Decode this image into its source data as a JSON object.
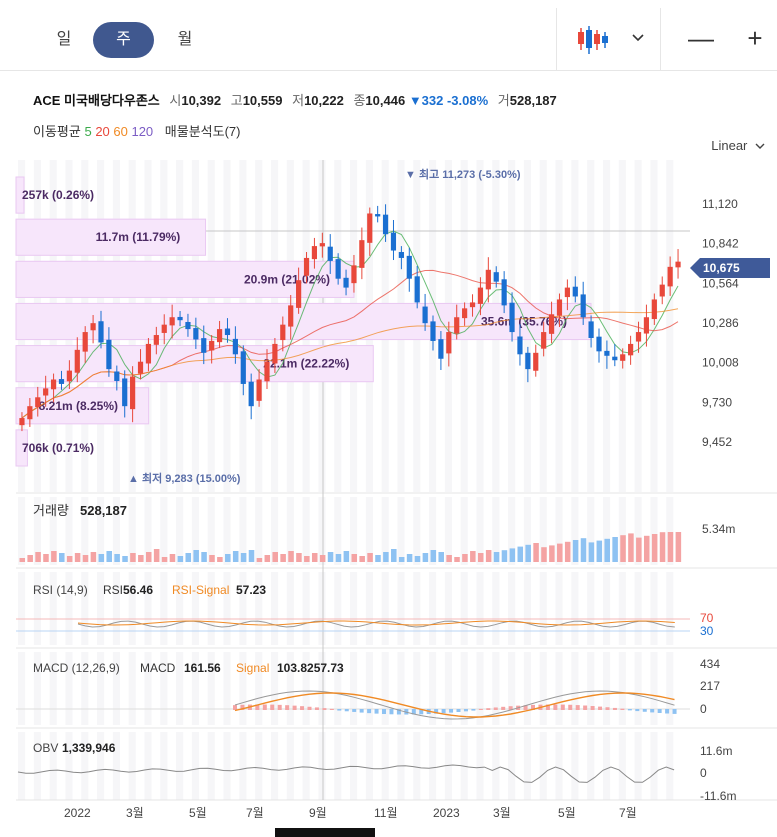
{
  "tabs": [
    {
      "label": "일",
      "active": false
    },
    {
      "label": "주",
      "active": true
    },
    {
      "label": "월",
      "active": false
    }
  ],
  "toolbar": {
    "dropdown_icon": "candlestick-icon",
    "minus": "—",
    "plus": "+"
  },
  "quote": {
    "name": "ACE 미국배당다우존스",
    "open_label": "시",
    "open": "10,392",
    "high_label": "고",
    "high": "10,559",
    "low_label": "저",
    "low": "10,222",
    "close_label": "종",
    "close": "10,446",
    "change": "▼332 -3.08%",
    "vol_label": "거",
    "volume": "528,187"
  },
  "indicators": {
    "ma_label": "이동평균",
    "ma_periods": [
      {
        "v": "5",
        "color": "#3aaa4a"
      },
      {
        "v": "20",
        "color": "#e8483b"
      },
      {
        "v": "60",
        "color": "#f08a24"
      },
      {
        "v": "120",
        "color": "#7b5cc4"
      }
    ],
    "vp_label": "매물분석도(7)"
  },
  "scale_label": "Linear",
  "chart_data": {
    "type": "candlestick",
    "price_axis": {
      "ticks": [
        "11,120",
        "10,842",
        "10,564",
        "10,286",
        "10,008",
        "9,730",
        "9,452"
      ],
      "range": [
        9283,
        11273
      ]
    },
    "current_price": "10,675",
    "high_marker": "▼ 최고 11,273 (-5.30%)",
    "low_marker": "▲ 최저 9,283 (15.00%)",
    "volume_profile": [
      {
        "label": "257k (0.26%)",
        "pct": 0.26
      },
      {
        "label": "11.7m (11.79%)",
        "pct": 11.79
      },
      {
        "label": "20.9m (21.02%)",
        "pct": 21.02
      },
      {
        "label": "35.6m (35.76%)",
        "pct": 35.76
      },
      {
        "label": "22.1m (22.22%)",
        "pct": 22.22
      },
      {
        "label": "8.21m (8.25%)",
        "pct": 8.25
      },
      {
        "label": "706k (0.71%)",
        "pct": 0.71
      }
    ],
    "closes": [
      9620,
      9700,
      9760,
      9820,
      9880,
      9850,
      9940,
      10080,
      10200,
      10260,
      10130,
      9950,
      9870,
      9700,
      9900,
      10000,
      10120,
      10180,
      10250,
      10300,
      10280,
      10220,
      10150,
      10060,
      10140,
      10220,
      10180,
      10050,
      9850,
      9700,
      9880,
      10000,
      10120,
      10250,
      10380,
      10550,
      10700,
      10780,
      10800,
      10680,
      10560,
      10500,
      10650,
      10820,
      11000,
      10980,
      10860,
      10750,
      10700,
      10560,
      10400,
      10260,
      10140,
      10020,
      10200,
      10300,
      10360,
      10400,
      10500,
      10620,
      10540,
      10380,
      10200,
      10050,
      9950,
      10060,
      10200,
      10320,
      10420,
      10500,
      10440,
      10300,
      10160,
      10070,
      10040,
      10010,
      10050,
      10120,
      10200,
      10300,
      10420,
      10520,
      10640,
      10675
    ],
    "volume": {
      "label": "거래량",
      "value": "528,187",
      "axis_max": "5.34m"
    },
    "rsi": {
      "label": "RSI (14,9)",
      "rsi_label": "RSI",
      "rsi": "56.46",
      "signal_label": "RSI-Signal",
      "signal": "57.23",
      "levels": [
        "70",
        "30"
      ]
    },
    "macd": {
      "label": "MACD (12,26,9)",
      "macd_label": "MACD",
      "macd": "161.56",
      "signal_label": "Signal",
      "signal": "103.8257.73",
      "ticks": [
        "434",
        "217",
        "0"
      ]
    },
    "obv": {
      "label": "OBV",
      "value": "1,339,946",
      "ticks": [
        "11.6m",
        "0",
        "-11.6m"
      ]
    },
    "x_labels": [
      "2022",
      "3월",
      "5월",
      "7월",
      "9월",
      "11월",
      "2023",
      "3월",
      "5월",
      "7월"
    ]
  }
}
